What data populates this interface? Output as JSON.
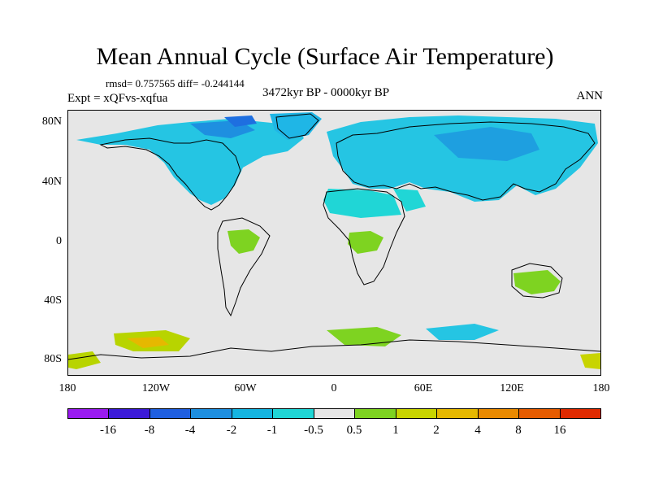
{
  "title": "Mean Annual Cycle (Surface Air Temperature)",
  "stats": "rmsd= 0.757565 diff= -0.244144",
  "experiment": "Expt = xQFvs-xqfua",
  "period": "3472kyr BP - 0000kyr BP",
  "season": "ANN",
  "map": {
    "ocean_color": "#e6e6e6",
    "lat_labels": [
      "80N",
      "40N",
      "0",
      "40S",
      "80S"
    ],
    "lon_labels": [
      "180",
      "120W",
      "60W",
      "0",
      "60E",
      "120E",
      "180"
    ]
  },
  "colorbar": {
    "colors": [
      "#9a1bf0",
      "#3c1ad8",
      "#1f5fe0",
      "#1e8fe0",
      "#15b4e0",
      "#20d6d6",
      "#e6e6e6",
      "#7ed321",
      "#c8d400",
      "#e6b800",
      "#ea8a00",
      "#e65c00",
      "#e02a00"
    ],
    "labels": [
      "-16",
      "-8",
      "-4",
      "-2",
      "-1",
      "-0.5",
      "0.5",
      "1",
      "2",
      "4",
      "8",
      "16"
    ]
  }
}
